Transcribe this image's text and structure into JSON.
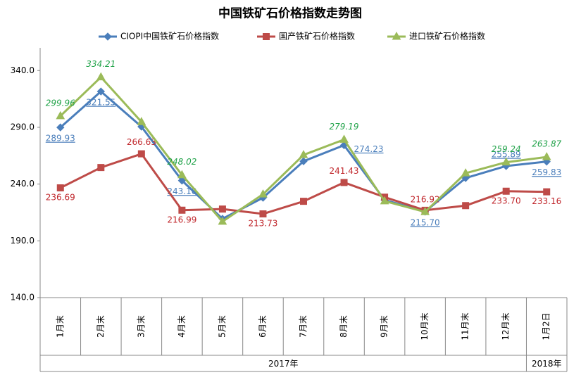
{
  "chart_data": {
    "type": "line",
    "title": "中国铁矿石价格指数走势图",
    "categories": [
      "1月末",
      "2月末",
      "3月末",
      "4月末",
      "5月末",
      "6月末",
      "7月末",
      "8月末",
      "9月末",
      "10月末",
      "11月末",
      "12月末",
      "1月2日"
    ],
    "x_groups": [
      {
        "name": "2017年",
        "count": 12
      },
      {
        "name": "2018年",
        "count": 1
      }
    ],
    "ylim": [
      140,
      360
    ],
    "yticks": [
      {
        "value": 140,
        "label": "140.0"
      },
      {
        "value": 190,
        "label": "190.0"
      },
      {
        "value": 240,
        "label": "240.0"
      },
      {
        "value": 290,
        "label": "290.0"
      },
      {
        "value": 340,
        "label": "340.0"
      }
    ],
    "legend": "top",
    "series": [
      {
        "name": "CIOPI中国铁矿石价格指数",
        "color": "#4a7ebb",
        "marker": "diamond",
        "values": [
          289.93,
          321.55,
          290.6,
          243.1,
          209.4,
          228,
          260.1,
          274.23,
          226,
          215.7,
          245.3,
          255.89,
          259.83
        ],
        "value_labels": [
          "289.93",
          "321.55",
          null,
          "243.10",
          null,
          null,
          null,
          "274.23",
          null,
          "215.70",
          null,
          "255.89",
          "259.83"
        ]
      },
      {
        "name": "国产铁矿石价格指数",
        "color": "#be4b48",
        "marker": "square",
        "values": [
          236.69,
          254.6,
          266.63,
          216.99,
          218,
          213.73,
          224.8,
          241.43,
          228.5,
          216.92,
          221,
          233.7,
          233.16
        ],
        "value_labels": [
          "236.69",
          null,
          "266.63",
          "216.99",
          null,
          "213.73",
          null,
          "241.43",
          null,
          "216.92",
          null,
          "233.70",
          "233.16"
        ]
      },
      {
        "name": "进口铁矿石价格指数",
        "color": "#9bbb59",
        "marker": "triangle",
        "values": [
          299.96,
          334.21,
          294.8,
          248.02,
          207,
          231,
          265.7,
          279.19,
          225,
          215.5,
          249.6,
          259.24,
          263.87
        ],
        "value_labels": [
          "299.96",
          "334.21",
          null,
          "248.02",
          null,
          null,
          null,
          "279.19",
          null,
          null,
          null,
          "259.24",
          "263.87"
        ]
      }
    ]
  }
}
